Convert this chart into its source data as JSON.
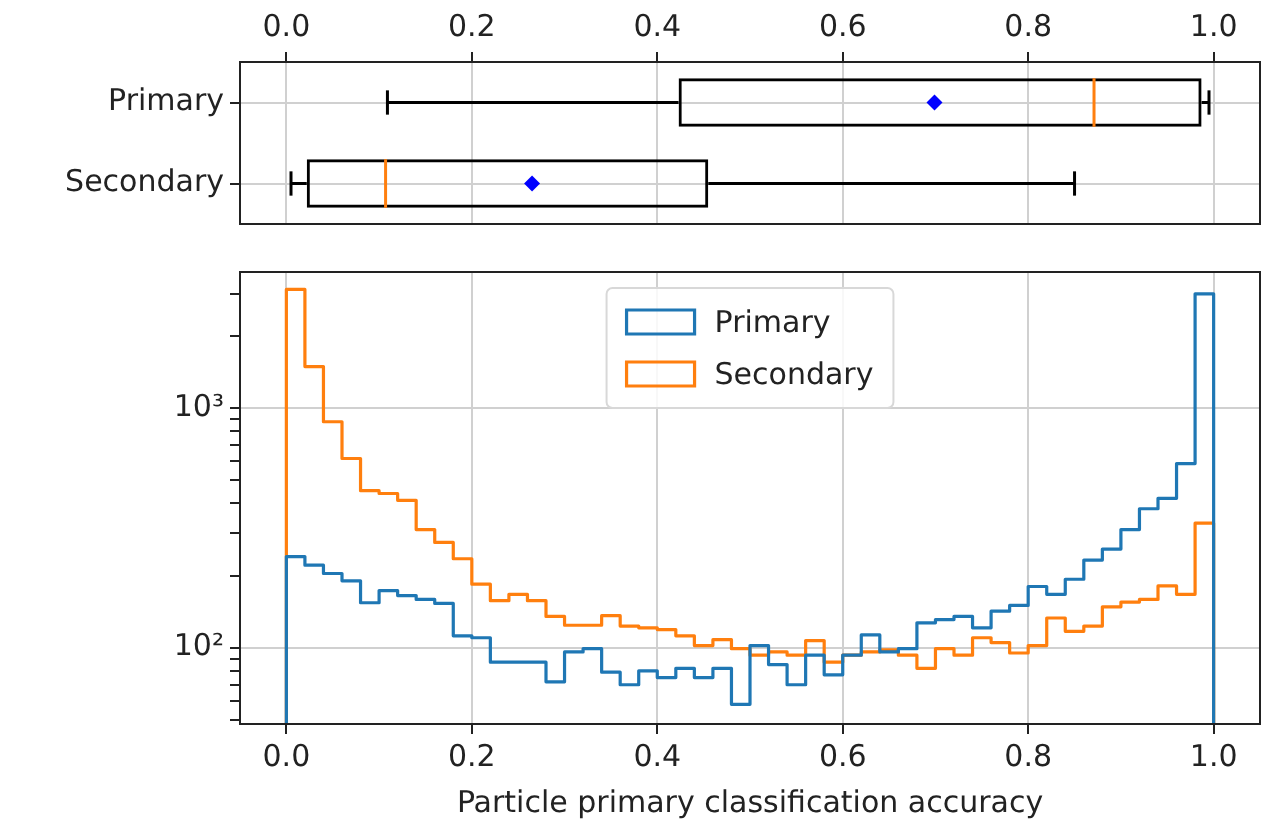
{
  "chart_data": [
    {
      "type": "box",
      "orientation": "horizontal",
      "categories": [
        "Primary",
        "Secondary"
      ],
      "series": [
        {
          "color": "#000000",
          "boxes": [
            {
              "low": 0.109,
              "q1": 0.423,
              "median": 0.871,
              "q3": 0.987,
              "high": 0.995,
              "mean": 0.699
            },
            {
              "low": 0.005,
              "q1": 0.022,
              "median": 0.107,
              "q3": 0.455,
              "high": 0.85,
              "mean": 0.265
            }
          ]
        }
      ],
      "xlim": [
        -0.05,
        1.05
      ],
      "xticks": [
        {
          "value": 0,
          "label": "0.0"
        },
        {
          "value": 0.2,
          "label": "0.2"
        },
        {
          "value": 0.4,
          "label": "0.4"
        },
        {
          "value": 0.6,
          "label": "0.6"
        },
        {
          "value": 0.8,
          "label": "0.8"
        },
        {
          "value": 1,
          "label": "1.0"
        }
      ],
      "marker": "diamond",
      "grid": true
    },
    {
      "type": "histogram",
      "xlabel": "Particle primary classification accuracy",
      "bins": [
        0,
        0.02,
        0.04,
        0.06,
        0.08,
        0.1,
        0.12,
        0.14,
        0.16,
        0.18,
        0.2,
        0.22,
        0.24,
        0.26,
        0.28,
        0.3,
        0.32,
        0.34,
        0.36,
        0.38,
        0.4,
        0.42,
        0.44,
        0.46,
        0.48,
        0.5,
        0.52,
        0.54,
        0.56,
        0.58,
        0.6,
        0.62,
        0.64,
        0.66,
        0.68,
        0.7,
        0.72,
        0.74,
        0.76,
        0.78,
        0.8,
        0.82,
        0.84,
        0.86,
        0.88,
        0.9,
        0.92,
        0.94,
        0.96,
        0.98,
        1
      ],
      "series": [
        {
          "name": "Primary",
          "color": "#1f77b4",
          "values": [
            240,
            221,
            204,
            190,
            154,
            173,
            165,
            159,
            153,
            112,
            110,
            87,
            87,
            87,
            72,
            96,
            99,
            79,
            70,
            80,
            75,
            82,
            75,
            82,
            58,
            102,
            85,
            70,
            93,
            77,
            93,
            113,
            96,
            99,
            127,
            131,
            135,
            121,
            142,
            150,
            180,
            167,
            193,
            232,
            258,
            311,
            380,
            420,
            587,
            3000
          ]
        },
        {
          "name": "Secondary",
          "color": "#ff7f0e",
          "values": [
            3130,
            1490,
            877,
            616,
            452,
            440,
            412,
            311,
            275,
            235,
            184,
            157,
            167,
            157,
            135,
            124,
            124,
            136,
            123,
            121,
            119,
            112,
            102,
            108,
            99,
            93,
            96,
            93,
            107,
            87,
            93,
            96,
            98,
            93,
            82,
            99,
            93,
            110,
            105,
            95,
            102,
            133,
            117,
            123,
            148,
            155,
            159,
            181,
            167,
            331
          ]
        }
      ],
      "log": "y",
      "xlim": [
        -0.05,
        1.05
      ],
      "ylim": [
        48,
        3700
      ],
      "xticks": [
        {
          "value": 0,
          "label": "0.0"
        },
        {
          "value": 0.2,
          "label": "0.2"
        },
        {
          "value": 0.4,
          "label": "0.4"
        },
        {
          "value": 0.6,
          "label": "0.6"
        },
        {
          "value": 0.8,
          "label": "0.8"
        },
        {
          "value": 1,
          "label": "1.0"
        }
      ],
      "yticks": [
        {
          "value": 50,
          "label": null
        },
        {
          "value": 60,
          "label": null
        },
        {
          "value": 70,
          "label": null
        },
        {
          "value": 80,
          "label": null
        },
        {
          "value": 90,
          "label": null
        },
        {
          "value": 100,
          "label": "10²"
        },
        {
          "value": 200,
          "label": null
        },
        {
          "value": 300,
          "label": null
        },
        {
          "value": 400,
          "label": null
        },
        {
          "value": 500,
          "label": null
        },
        {
          "value": 600,
          "label": null
        },
        {
          "value": 700,
          "label": null
        },
        {
          "value": 800,
          "label": null
        },
        {
          "value": 900,
          "label": null
        },
        {
          "value": 1000,
          "label": "10³"
        },
        {
          "value": 2000,
          "label": null
        },
        {
          "value": 3000,
          "label": null
        }
      ],
      "legend": "top",
      "grid": true
    }
  ]
}
